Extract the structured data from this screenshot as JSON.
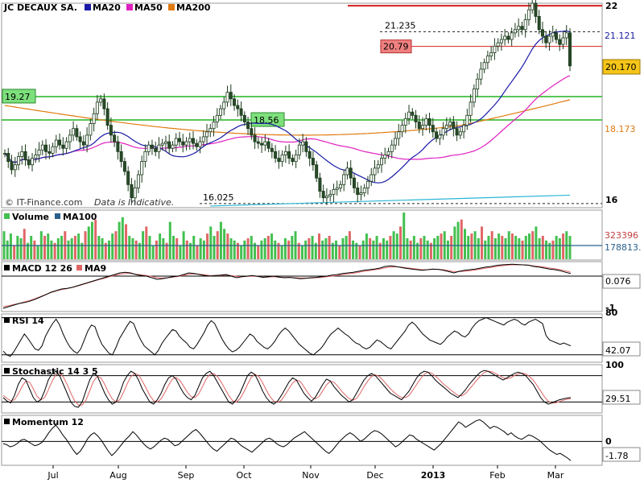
{
  "colors": {
    "price": "#2a6b2a",
    "up": "#2fb34a",
    "down": "#d9534f",
    "ma20": "#1a1aa6",
    "ma50": "#e020c0",
    "ma200": "#e07a10",
    "hline_green": "#22b422",
    "hline_red": "#d62020",
    "cyan": "#2ab6d6",
    "vol_up": "#43c04f",
    "vol_down": "#e06666",
    "vol_ma": "#2a5f8a",
    "macd": "#000000",
    "macd_signal": "#e06666",
    "stoch_k": "#000000",
    "stoch_d": "#e06666"
  },
  "header": {
    "ticker": "JC DECAUX SA.",
    "legend": [
      {
        "name": "MA20",
        "color": "#1a1aa6"
      },
      {
        "name": "MA50",
        "color": "#e020c0"
      },
      {
        "name": "MA200",
        "color": "#e07a10"
      }
    ],
    "watermark": "© IT-Finance.com",
    "disclaimer": "Data is Indicative."
  },
  "chart_data": [
    {
      "type": "candlestick",
      "name": "price",
      "x_ticks": [
        "Jul",
        "Aug",
        "Sep",
        "Oct",
        "Nov",
        "Dec",
        "2013",
        "Feb",
        "Mar"
      ],
      "ylim": [
        15.9,
        22.1
      ],
      "y_ticks": [
        "22",
        "16"
      ],
      "last_price": "20.170",
      "ma200_value": "18.173",
      "ma20_value": "21.121",
      "annotations": [
        {
          "label": "19.27",
          "value": 19.27,
          "style": "green-line"
        },
        {
          "label": "18.56",
          "value": 18.56,
          "style": "green-line"
        },
        {
          "label": "20.79",
          "value": 20.79,
          "style": "red-line"
        },
        {
          "label": "21.235",
          "value": 21.235,
          "style": "dashed"
        },
        {
          "label": "16.025",
          "value": 16.025,
          "style": "dashed"
        },
        {
          "label": "",
          "value": 22.0,
          "style": "red-line"
        }
      ],
      "closes": [
        17.55,
        17.3,
        17.05,
        17.2,
        17.45,
        17.6,
        17.35,
        17.2,
        17.4,
        17.5,
        17.65,
        17.8,
        17.6,
        17.55,
        17.75,
        17.95,
        17.8,
        17.7,
        17.9,
        18.1,
        18.3,
        18.05,
        17.9,
        17.8,
        18.1,
        18.45,
        18.75,
        19.1,
        19.2,
        18.9,
        18.4,
        18.1,
        17.9,
        17.6,
        17.3,
        17.0,
        16.6,
        16.2,
        16.5,
        16.9,
        17.3,
        17.6,
        17.8,
        17.7,
        17.6,
        17.8,
        17.85,
        17.9,
        17.7,
        17.8,
        18.0,
        17.9,
        17.8,
        17.9,
        18.0,
        17.85,
        17.75,
        17.9,
        18.05,
        18.2,
        18.3,
        18.5,
        18.7,
        18.9,
        19.1,
        19.4,
        19.2,
        19.0,
        18.9,
        18.7,
        18.5,
        18.3,
        18.1,
        17.9,
        17.85,
        17.8,
        17.9,
        17.7,
        17.6,
        17.4,
        17.3,
        17.5,
        17.6,
        17.4,
        17.3,
        17.5,
        17.8,
        17.9,
        17.6,
        17.4,
        17.2,
        16.8,
        16.4,
        16.2,
        16.25,
        16.3,
        16.45,
        16.5,
        16.6,
        16.9,
        17.1,
        16.8,
        16.5,
        16.3,
        16.35,
        16.5,
        16.7,
        16.9,
        17.1,
        17.2,
        17.4,
        17.5,
        17.6,
        17.8,
        18.0,
        18.2,
        18.4,
        18.6,
        18.8,
        18.7,
        18.5,
        18.3,
        18.4,
        18.6,
        18.4,
        18.2,
        18.0,
        18.1,
        18.3,
        18.4,
        18.5,
        18.3,
        18.1,
        18.2,
        18.4,
        18.7,
        19.1,
        19.5,
        19.8,
        20.1,
        20.3,
        20.5,
        20.6,
        20.8,
        20.9,
        21.0,
        21.1,
        21.0,
        21.2,
        21.3,
        21.4,
        21.3,
        21.6,
        21.9,
        22.1,
        21.7,
        21.3,
        21.1,
        20.9,
        21.1,
        21.2,
        21.0,
        20.85,
        21.05,
        21.2,
        20.2
      ]
    },
    {
      "type": "bar",
      "name": "volume",
      "legend": [
        {
          "name": "Volume",
          "color": "#43c04f"
        },
        {
          "name": "MA100",
          "color": "#2a5f8a"
        }
      ],
      "last_value": "323396",
      "ma_value": "178813.",
      "values": [
        0.6,
        0.4,
        0.55,
        0.3,
        0.5,
        0.45,
        0.65,
        0.35,
        0.5,
        0.4,
        0.3,
        0.6,
        0.5,
        0.55,
        0.4,
        0.35,
        0.45,
        0.5,
        0.6,
        0.4,
        0.45,
        0.5,
        0.55,
        0.35,
        0.6,
        0.7,
        0.8,
        0.85,
        0.5,
        0.45,
        0.35,
        0.4,
        0.55,
        0.6,
        0.8,
        0.9,
        0.75,
        0.5,
        0.45,
        0.4,
        0.35,
        0.6,
        0.7,
        0.5,
        0.3,
        0.4,
        0.55,
        0.45,
        0.35,
        0.8,
        0.5,
        0.45,
        0.3,
        0.6,
        0.4,
        0.35,
        0.5,
        0.3,
        0.45,
        0.4,
        0.55,
        0.7,
        0.5,
        0.6,
        0.8,
        0.65,
        0.55,
        0.45,
        0.4,
        0.35,
        0.3,
        0.4,
        0.45,
        0.5,
        0.35,
        0.3,
        0.4,
        0.45,
        0.5,
        0.55,
        0.4,
        0.35,
        0.3,
        0.45,
        0.4,
        0.5,
        0.6,
        0.35,
        0.3,
        0.4,
        0.45,
        0.5,
        0.35,
        0.55,
        0.4,
        0.45,
        0.5,
        0.35,
        0.4,
        0.3,
        0.45,
        0.5,
        0.6,
        0.4,
        0.35,
        0.3,
        0.4,
        0.55,
        0.45,
        0.4,
        0.5,
        0.35,
        0.45,
        0.4,
        0.5,
        0.6,
        0.55,
        0.7,
        1.0,
        0.45,
        0.4,
        0.5,
        0.35,
        0.45,
        0.5,
        0.4,
        0.35,
        0.45,
        0.5,
        0.55,
        0.6,
        0.4,
        0.5,
        0.7,
        0.8,
        0.85,
        0.65,
        0.5,
        0.55,
        0.6,
        0.45,
        0.7,
        0.4,
        0.5,
        0.6,
        0.45,
        0.55,
        0.5,
        0.45,
        0.6,
        0.55,
        0.5,
        0.45,
        0.4,
        0.5,
        0.55,
        0.6,
        0.7,
        0.45,
        0.5,
        0.4,
        0.35,
        0.4,
        0.5,
        0.45,
        0.55,
        0.6,
        0.5
      ]
    },
    {
      "type": "line",
      "name": "macd",
      "label": "MACD 12 26",
      "legend": [
        {
          "name": "MACD 12 26",
          "color": "#000000"
        },
        {
          "name": "MA9",
          "color": "#e06666"
        }
      ],
      "last_value": "0.076",
      "y_ticks": [
        "-1"
      ],
      "ylim": [
        -1.1,
        0.45
      ],
      "values": [
        -1.0,
        -0.95,
        -0.9,
        -0.85,
        -0.82,
        -0.78,
        -0.72,
        -0.65,
        -0.58,
        -0.5,
        -0.45,
        -0.4,
        -0.38,
        -0.35,
        -0.3,
        -0.25,
        -0.2,
        -0.15,
        -0.1,
        -0.05,
        0.0,
        0.05,
        0.1,
        0.12,
        0.1,
        0.05,
        0.02,
        0.0,
        -0.05,
        -0.1,
        -0.08,
        -0.05,
        -0.02,
        0.0,
        0.05,
        0.1,
        0.08,
        0.05,
        0.02,
        0.0,
        0.02,
        0.03,
        0.05,
        0.0,
        -0.05,
        -0.02,
        0.0,
        0.02,
        -0.01,
        -0.04,
        -0.02,
        0.0,
        -0.03,
        -0.05,
        -0.04,
        -0.06,
        -0.08,
        -0.07,
        -0.05,
        -0.04,
        -0.02,
        0.0,
        0.03,
        0.05,
        0.08,
        0.1,
        0.12,
        0.15,
        0.18,
        0.2,
        0.22,
        0.25,
        0.3,
        0.32,
        0.3,
        0.27,
        0.24,
        0.22,
        0.2,
        0.18,
        0.2,
        0.22,
        0.21,
        0.18,
        0.14,
        0.1,
        0.15,
        0.18,
        0.2,
        0.22,
        0.25,
        0.28,
        0.3,
        0.33,
        0.35,
        0.36,
        0.37,
        0.36,
        0.35,
        0.34,
        0.3,
        0.28,
        0.25,
        0.22,
        0.2,
        0.17,
        0.12,
        0.08
      ],
      "signal": [
        -0.95,
        -0.92,
        -0.88,
        -0.85,
        -0.8,
        -0.76,
        -0.7,
        -0.64,
        -0.57,
        -0.51,
        -0.46,
        -0.42,
        -0.39,
        -0.35,
        -0.31,
        -0.26,
        -0.21,
        -0.16,
        -0.11,
        -0.07,
        -0.02,
        0.02,
        0.06,
        0.08,
        0.08,
        0.06,
        0.04,
        0.02,
        -0.01,
        -0.05,
        -0.06,
        -0.05,
        -0.03,
        -0.01,
        0.02,
        0.06,
        0.07,
        0.06,
        0.04,
        0.02,
        0.02,
        0.02,
        0.03,
        0.02,
        -0.01,
        -0.02,
        -0.01,
        0.0,
        -0.01,
        -0.03,
        -0.03,
        -0.02,
        -0.03,
        -0.04,
        -0.04,
        -0.05,
        -0.06,
        -0.06,
        -0.06,
        -0.05,
        -0.04,
        -0.02,
        0.0,
        0.02,
        0.05,
        0.07,
        0.09,
        0.12,
        0.15,
        0.17,
        0.2,
        0.22,
        0.26,
        0.28,
        0.29,
        0.28,
        0.26,
        0.24,
        0.22,
        0.2,
        0.2,
        0.21,
        0.21,
        0.2,
        0.17,
        0.14,
        0.14,
        0.15,
        0.17,
        0.19,
        0.22,
        0.25,
        0.27,
        0.3,
        0.32,
        0.34,
        0.35,
        0.35,
        0.35,
        0.34,
        0.32,
        0.3,
        0.28,
        0.25,
        0.23,
        0.2,
        0.16,
        0.12
      ]
    },
    {
      "type": "line",
      "name": "rsi",
      "label": "RSI 14",
      "last_value": "42.07",
      "y_ticks": [
        "80"
      ],
      "ylim": [
        20,
        85
      ],
      "values": [
        35,
        30,
        28,
        34,
        42,
        50,
        58,
        52,
        45,
        38,
        36,
        42,
        55,
        64,
        72,
        78,
        70,
        58,
        48,
        40,
        35,
        32,
        38,
        50,
        62,
        70,
        68,
        55,
        44,
        38,
        32,
        30,
        40,
        52,
        60,
        68,
        75,
        72,
        60,
        50,
        42,
        38,
        34,
        30,
        36,
        45,
        52,
        58,
        64,
        62,
        55,
        50,
        46,
        40,
        38,
        44,
        52,
        60,
        70,
        76,
        72,
        62,
        52,
        44,
        38,
        34,
        36,
        40,
        46,
        52,
        58,
        55,
        48,
        44,
        40,
        38,
        42,
        48,
        56,
        62,
        66,
        62,
        56,
        50,
        44,
        40,
        36,
        32,
        30,
        34,
        38,
        44,
        52,
        58,
        62,
        66,
        62,
        58,
        55,
        50,
        46,
        44,
        40,
        38,
        40,
        45,
        50,
        48,
        44,
        40,
        38,
        44,
        50,
        56,
        62,
        70,
        74,
        70,
        64,
        58,
        54,
        50,
        48,
        46,
        44,
        48,
        54,
        58,
        62,
        60,
        56,
        54,
        58,
        66,
        72,
        76,
        78,
        80,
        78,
        76,
        74,
        72,
        70,
        74,
        76,
        78,
        76,
        72,
        70,
        74,
        76,
        78,
        75,
        72,
        56,
        50,
        48,
        46,
        44,
        46,
        44,
        42
      ]
    },
    {
      "type": "line",
      "name": "stochastic",
      "label": "Stochastic 14 3 5",
      "last_value": "29.51",
      "y_ticks": [
        "100"
      ],
      "ylim": [
        -5,
        105
      ],
      "k": [
        30,
        22,
        18,
        35,
        60,
        75,
        70,
        50,
        30,
        20,
        25,
        45,
        70,
        85,
        90,
        80,
        60,
        40,
        20,
        10,
        8,
        20,
        45,
        70,
        85,
        80,
        60,
        40,
        25,
        15,
        20,
        40,
        65,
        80,
        90,
        85,
        70,
        50,
        35,
        20,
        15,
        25,
        40,
        60,
        75,
        80,
        72,
        55,
        40,
        30,
        25,
        35,
        55,
        75,
        85,
        90,
        80,
        65,
        50,
        35,
        20,
        15,
        25,
        40,
        60,
        80,
        88,
        82,
        65,
        45,
        30,
        20,
        15,
        22,
        35,
        50,
        65,
        75,
        70,
        55,
        40,
        30,
        22,
        30,
        45,
        60,
        72,
        68,
        55,
        45,
        35,
        28,
        20,
        25,
        40,
        55,
        70,
        80,
        85,
        80,
        70,
        60,
        50,
        40,
        35,
        30,
        25,
        35,
        45,
        60,
        75,
        85,
        90,
        88,
        80,
        70,
        62,
        55,
        48,
        40,
        35,
        30,
        38,
        48,
        60,
        70,
        80,
        88,
        92,
        90,
        85,
        80,
        75,
        70,
        75,
        80,
        85,
        88,
        85,
        80,
        70,
        60,
        45,
        30,
        20,
        15,
        18,
        22,
        25,
        27,
        29,
        30
      ],
      "d": [
        35,
        28,
        23,
        25,
        38,
        55,
        68,
        65,
        50,
        33,
        25,
        30,
        47,
        67,
        82,
        85,
        77,
        60,
        40,
        23,
        13,
        13,
        24,
        45,
        67,
        78,
        75,
        60,
        42,
        27,
        20,
        25,
        42,
        62,
        78,
        85,
        82,
        68,
        52,
        35,
        23,
        20,
        27,
        42,
        58,
        72,
        76,
        69,
        56,
        42,
        32,
        30,
        38,
        55,
        72,
        83,
        85,
        78,
        65,
        50,
        35,
        23,
        20,
        27,
        42,
        60,
        76,
        83,
        78,
        64,
        47,
        32,
        22,
        19,
        24,
        36,
        50,
        63,
        70,
        67,
        55,
        42,
        31,
        27,
        32,
        45,
        59,
        67,
        65,
        56,
        45,
        36,
        28,
        24,
        28,
        40,
        55,
        68,
        78,
        82,
        78,
        70,
        60,
        50,
        42,
        35,
        30,
        30,
        35,
        47,
        60,
        73,
        83,
        88,
        86,
        79,
        71,
        62,
        55,
        48,
        41,
        35,
        34,
        39,
        49,
        59,
        70,
        79,
        87,
        90,
        89,
        85,
        80,
        75,
        73,
        75,
        80,
        84,
        86,
        84,
        78,
        70,
        58,
        45,
        32,
        22,
        18,
        18,
        21,
        24,
        26,
        28
      ]
    },
    {
      "type": "line",
      "name": "momentum",
      "label": "Momentum 12",
      "last_value": "-1.78",
      "y_ticks": [
        "0"
      ],
      "ylim": [
        -2.2,
        2.4
      ],
      "values": [
        -0.2,
        -0.3,
        -0.5,
        -0.4,
        -0.2,
        0.1,
        0.2,
        0.0,
        -0.2,
        -0.4,
        -0.3,
        -0.1,
        0.3,
        0.8,
        1.2,
        1.5,
        1.1,
        0.6,
        0.2,
        -0.3,
        -0.8,
        -1.2,
        -0.9,
        -0.4,
        0.2,
        0.6,
        0.8,
        0.5,
        0.1,
        -0.4,
        -0.9,
        -1.3,
        -1.0,
        -0.6,
        -0.2,
        0.2,
        0.5,
        0.9,
        0.6,
        0.2,
        -0.2,
        -0.5,
        -0.7,
        -0.5,
        -0.2,
        0.1,
        0.3,
        0.2,
        -0.1,
        -0.4,
        -0.3,
        0.0,
        0.3,
        0.6,
        0.9,
        1.1,
        0.8,
        0.4,
        0.0,
        -0.4,
        -0.7,
        -0.9,
        -0.6,
        -0.3,
        0.0,
        0.3,
        0.2,
        -0.1,
        -0.4,
        -0.6,
        -0.8,
        -1.0,
        -0.7,
        -0.4,
        -0.1,
        0.2,
        0.3,
        0.1,
        -0.2,
        -0.4,
        -0.5,
        -0.3,
        0.0,
        0.3,
        0.5,
        0.7,
        0.9,
        0.6,
        0.3,
        0.0,
        -0.3,
        -0.6,
        -0.9,
        -1.1,
        -0.8,
        -0.4,
        0.0,
        0.3,
        0.6,
        0.8,
        0.6,
        0.3,
        0.0,
        0.2,
        0.5,
        0.8,
        1.0,
        0.9,
        0.7,
        0.4,
        0.1,
        -0.2,
        -0.5,
        -0.3,
        0.0,
        0.3,
        0.6,
        0.5,
        0.2,
        0.0,
        -0.2,
        -0.4,
        -0.6,
        -0.8,
        -0.5,
        -0.2,
        0.2,
        0.6,
        1.0,
        1.4,
        1.8,
        1.6,
        1.3,
        1.5,
        1.7,
        1.9,
        2.0,
        1.8,
        1.5,
        1.2,
        1.4,
        1.3,
        1.1,
        0.9,
        0.6,
        0.8,
        0.5,
        0.3,
        0.2,
        0.4,
        0.6,
        0.5,
        0.3,
        0.1,
        -0.2,
        -0.5,
        -0.8,
        -1.0,
        -1.2,
        -1.1,
        -1.3,
        -1.5,
        -1.78
      ]
    }
  ]
}
